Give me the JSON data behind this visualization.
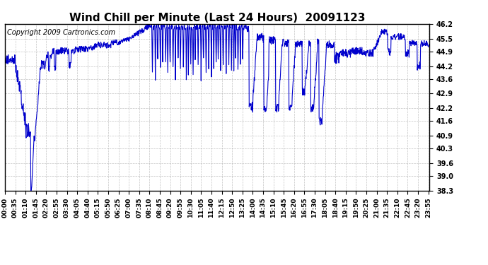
{
  "title": "Wind Chill per Minute (Last 24 Hours)  20091123",
  "copyright": "Copyright 2009 Cartronics.com",
  "line_color": "#0000CC",
  "background_color": "#ffffff",
  "grid_color": "#aaaaaa",
  "yticks": [
    38.3,
    39.0,
    39.6,
    40.3,
    40.9,
    41.6,
    42.2,
    42.9,
    43.6,
    44.2,
    44.9,
    45.5,
    46.2
  ],
  "ylim": [
    38.3,
    46.2
  ],
  "xtick_labels": [
    "00:00",
    "00:35",
    "01:10",
    "01:45",
    "02:20",
    "02:55",
    "03:30",
    "04:05",
    "04:40",
    "05:15",
    "05:50",
    "06:25",
    "07:00",
    "07:35",
    "08:10",
    "08:45",
    "09:20",
    "09:55",
    "10:30",
    "11:05",
    "11:40",
    "12:15",
    "12:50",
    "13:25",
    "14:00",
    "14:35",
    "15:10",
    "15:45",
    "16:20",
    "16:55",
    "17:30",
    "18:05",
    "18:40",
    "19:15",
    "19:50",
    "20:25",
    "21:00",
    "21:35",
    "22:10",
    "22:45",
    "23:20",
    "23:55"
  ],
  "title_fontsize": 11,
  "tick_fontsize": 7,
  "copyright_fontsize": 7
}
